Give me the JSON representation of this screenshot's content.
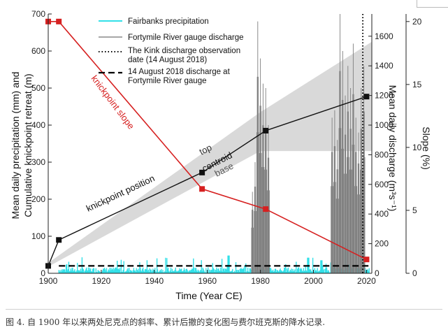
{
  "figure": {
    "caption": "图 4. 自 1900 年以来两处尼克点的斜率、累计后撤的变化图与费尔班克斯的降水记录."
  },
  "chart_data": {
    "type": "line",
    "xlabel": "Time (Year CE)",
    "ylabel_left": [
      "Mean daily precipitation (mm) and",
      "Cumulative knickpoint retreat (m)"
    ],
    "ylabel_right_discharge": "Mean daily discharge (m³s⁻¹)",
    "ylabel_right_slope": "Slope (%)",
    "xlim": [
      1900,
      2022
    ],
    "ylim_left": [
      0,
      700
    ],
    "ylim_discharge": [
      0,
      1750
    ],
    "ylim_slope": [
      0,
      20.6
    ],
    "x_ticks": [
      1900,
      1920,
      1940,
      1960,
      1980,
      2000,
      2020
    ],
    "y_left_ticks": [
      0,
      100,
      200,
      300,
      400,
      500,
      600,
      700
    ],
    "discharge_ticks": [
      0,
      200,
      400,
      600,
      800,
      1000,
      1200,
      1400,
      1600
    ],
    "slope_ticks": [
      0,
      5,
      10,
      15,
      20
    ],
    "legend": [
      {
        "label": "Fairbanks precipitation",
        "style": "cyan-line"
      },
      {
        "label": "Fortymile River gauge discharge",
        "style": "gray-line"
      },
      {
        "label": "The Kink discharge observation",
        "label2": "date (14 August 2018)",
        "style": "dotted"
      },
      {
        "label": "14 August 2018 discharge at",
        "label2": "Fortymile River gauge",
        "style": "dashed"
      }
    ],
    "colors": {
      "precipitation": "#33e0e8",
      "discharge": "#7f7f7f",
      "slope": "#d62020",
      "position": "#111111",
      "band": "#d9d9d9"
    },
    "series": [
      {
        "name": "knickpoint position",
        "axis": "left",
        "x": [
          1900,
          1904,
          1958,
          1982,
          2020
        ],
        "y": [
          20,
          90,
          272,
          385,
          477
        ]
      },
      {
        "name": "knickpoint slope",
        "axis": "slope",
        "x": [
          1900,
          1904,
          1958,
          1982,
          2020
        ],
        "y": [
          20.0,
          20.0,
          6.7,
          5.1,
          1.1
        ]
      }
    ],
    "band": {
      "x": [
        1900,
        1980,
        2022
      ],
      "upper": [
        28,
        435,
        625
      ],
      "lower": [
        18,
        330,
        330
      ]
    },
    "band_labels": [
      "top",
      "centroid",
      "base"
    ],
    "kink_observation_year": 2018.6,
    "discharge_2018_aug14": 50,
    "discharge_spikes": [
      [
        1977,
        550
      ],
      [
        1978,
        750
      ],
      [
        1979,
        1700
      ],
      [
        1980,
        1450
      ],
      [
        1981,
        1280
      ],
      [
        1982,
        1250
      ],
      [
        1983,
        1000
      ],
      [
        2007,
        1050
      ],
      [
        2008,
        1100
      ],
      [
        2009,
        900
      ],
      [
        2010,
        1750
      ],
      [
        2011,
        1500
      ],
      [
        2012,
        1200
      ],
      [
        2013,
        1400
      ],
      [
        2014,
        1250
      ],
      [
        2015,
        1550
      ],
      [
        2016,
        1050
      ],
      [
        2017,
        950
      ],
      [
        2018,
        1250
      ],
      [
        2019,
        1400
      ]
    ]
  }
}
